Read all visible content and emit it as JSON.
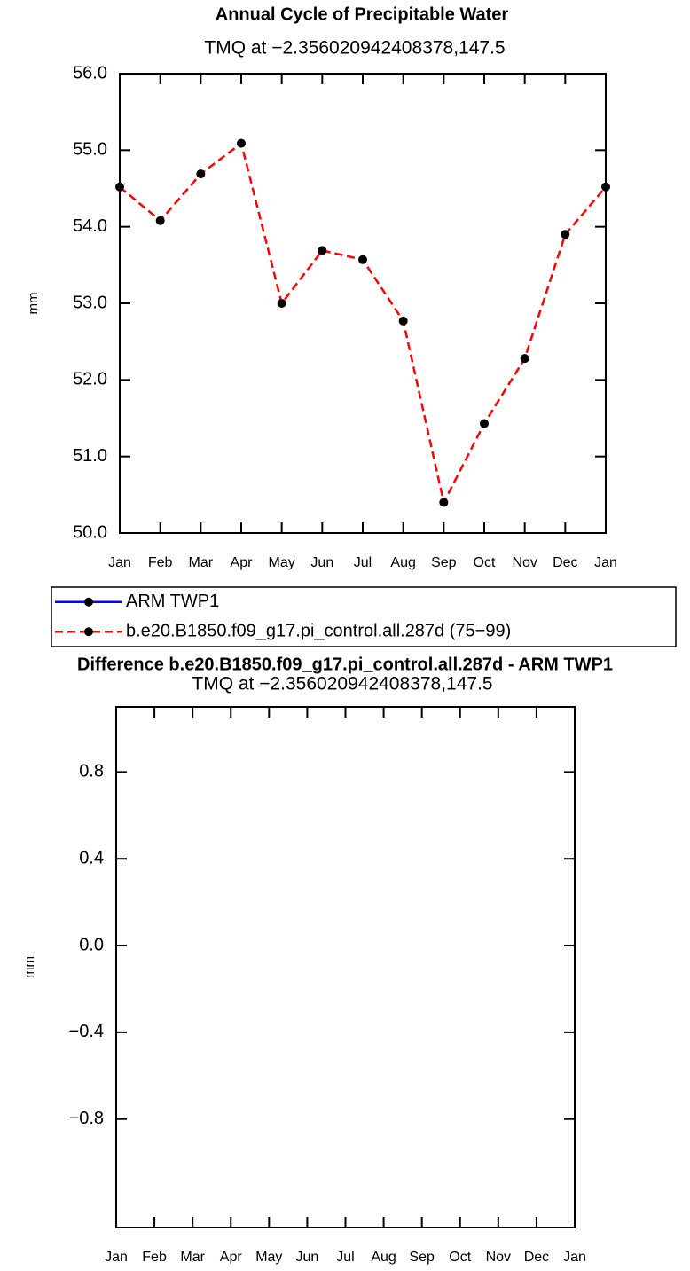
{
  "chart_data": [
    {
      "type": "line",
      "title": "Annual Cycle of Precipitable Water",
      "subtitle": "TMQ at −2.356020942408378,147.5",
      "ylabel": "mm",
      "categories": [
        "Jan",
        "Feb",
        "Mar",
        "Apr",
        "May",
        "Jun",
        "Jul",
        "Aug",
        "Sep",
        "Oct",
        "Nov",
        "Dec",
        "Jan"
      ],
      "series": [
        {
          "name": "ARM TWP1",
          "color": "#0000ff",
          "dashed": false,
          "values": [
            null,
            null,
            null,
            null,
            null,
            null,
            null,
            null,
            null,
            null,
            null,
            null,
            null
          ]
        },
        {
          "name": "b.e20.B1850.f09_g17.pi_control.all.287d (75−99)",
          "color": "#ff0000",
          "dashed": true,
          "values": [
            54.52,
            54.08,
            54.69,
            55.09,
            53.0,
            53.69,
            53.57,
            52.77,
            50.4,
            51.43,
            52.28,
            53.9,
            54.52
          ]
        }
      ],
      "ylim": [
        50,
        56
      ],
      "yticks": [
        {
          "value": 50,
          "label": "50.0"
        },
        {
          "value": 51,
          "label": "51.0"
        },
        {
          "value": 52,
          "label": "52.0"
        },
        {
          "value": 53,
          "label": "53.0"
        },
        {
          "value": 54,
          "label": "54.0"
        },
        {
          "value": 55,
          "label": "55.0"
        },
        {
          "value": 56,
          "label": "56.0"
        }
      ]
    },
    {
      "type": "line",
      "title": "Difference b.e20.B1850.f09_g17.pi_control.all.287d - ARM TWP1",
      "subtitle": "TMQ at −2.356020942408378,147.5",
      "ylabel": "mm",
      "categories": [
        "Jan",
        "Feb",
        "Mar",
        "Apr",
        "May",
        "Jun",
        "Jul",
        "Aug",
        "Sep",
        "Oct",
        "Nov",
        "Dec",
        "Jan"
      ],
      "series": [],
      "ylim": [
        -1.3,
        1.1
      ],
      "yticks": [
        {
          "value": -0.8,
          "label": "−0.8"
        },
        {
          "value": -0.4,
          "label": "−0.4"
        },
        {
          "value": 0,
          "label": "0.0"
        },
        0.4,
        0.8
      ]
    }
  ]
}
